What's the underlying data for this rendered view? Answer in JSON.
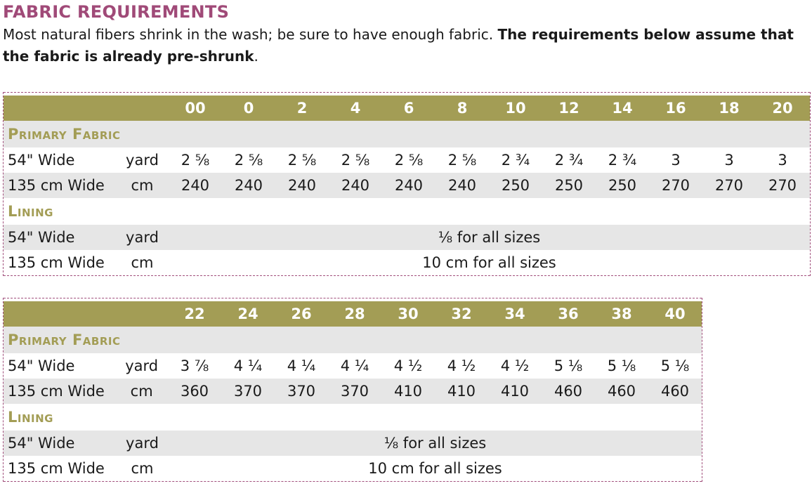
{
  "title": "FABRIC REQUIREMENTS",
  "intro": {
    "normal": "Most natural fibers shrink in the wash; be sure to have enough fabric. ",
    "bold": "The requirements below assume that the fabric is already pre-shrunk",
    "end": "."
  },
  "table1": {
    "sizes": [
      "00",
      "0",
      "2",
      "4",
      "6",
      "8",
      "10",
      "12",
      "14",
      "16",
      "18",
      "20"
    ],
    "primary_title": "Primary Fabric",
    "primary_rows": [
      {
        "label": "54\" Wide",
        "unit": "yard",
        "values": [
          "2 ⅝",
          "2 ⅝",
          "2 ⅝",
          "2 ⅝",
          "2 ⅝",
          "2 ⅝",
          "2 ¾",
          "2 ¾",
          "2 ¾",
          "3",
          "3",
          "3"
        ]
      },
      {
        "label": "135 cm Wide",
        "unit": "cm",
        "values": [
          "240",
          "240",
          "240",
          "240",
          "240",
          "240",
          "250",
          "250",
          "250",
          "270",
          "270",
          "270"
        ]
      }
    ],
    "lining_title": "Lining",
    "lining_rows": [
      {
        "label": "54\" Wide",
        "unit": "yard",
        "text": "⅛ for all sizes"
      },
      {
        "label": "135 cm Wide",
        "unit": "cm",
        "text": "10 cm for all sizes"
      }
    ]
  },
  "table2": {
    "sizes": [
      "22",
      "24",
      "26",
      "28",
      "30",
      "32",
      "34",
      "36",
      "38",
      "40"
    ],
    "primary_title": "Primary Fabric",
    "primary_rows": [
      {
        "label": "54\" Wide",
        "unit": "yard",
        "values": [
          "3 ⅞",
          "4 ¼",
          "4 ¼",
          "4 ¼",
          "4 ½",
          "4 ½",
          "4 ½",
          "5 ⅛",
          "5 ⅛",
          "5 ⅛"
        ]
      },
      {
        "label": "135 cm Wide",
        "unit": "cm",
        "values": [
          "360",
          "370",
          "370",
          "370",
          "410",
          "410",
          "410",
          "460",
          "460",
          "460"
        ]
      }
    ],
    "lining_title": "Lining",
    "lining_rows": [
      {
        "label": "54\" Wide",
        "unit": "yard",
        "text": "⅛ for all sizes"
      },
      {
        "label": "135 cm Wide",
        "unit": "cm",
        "text": "10 cm for all sizes"
      }
    ]
  }
}
